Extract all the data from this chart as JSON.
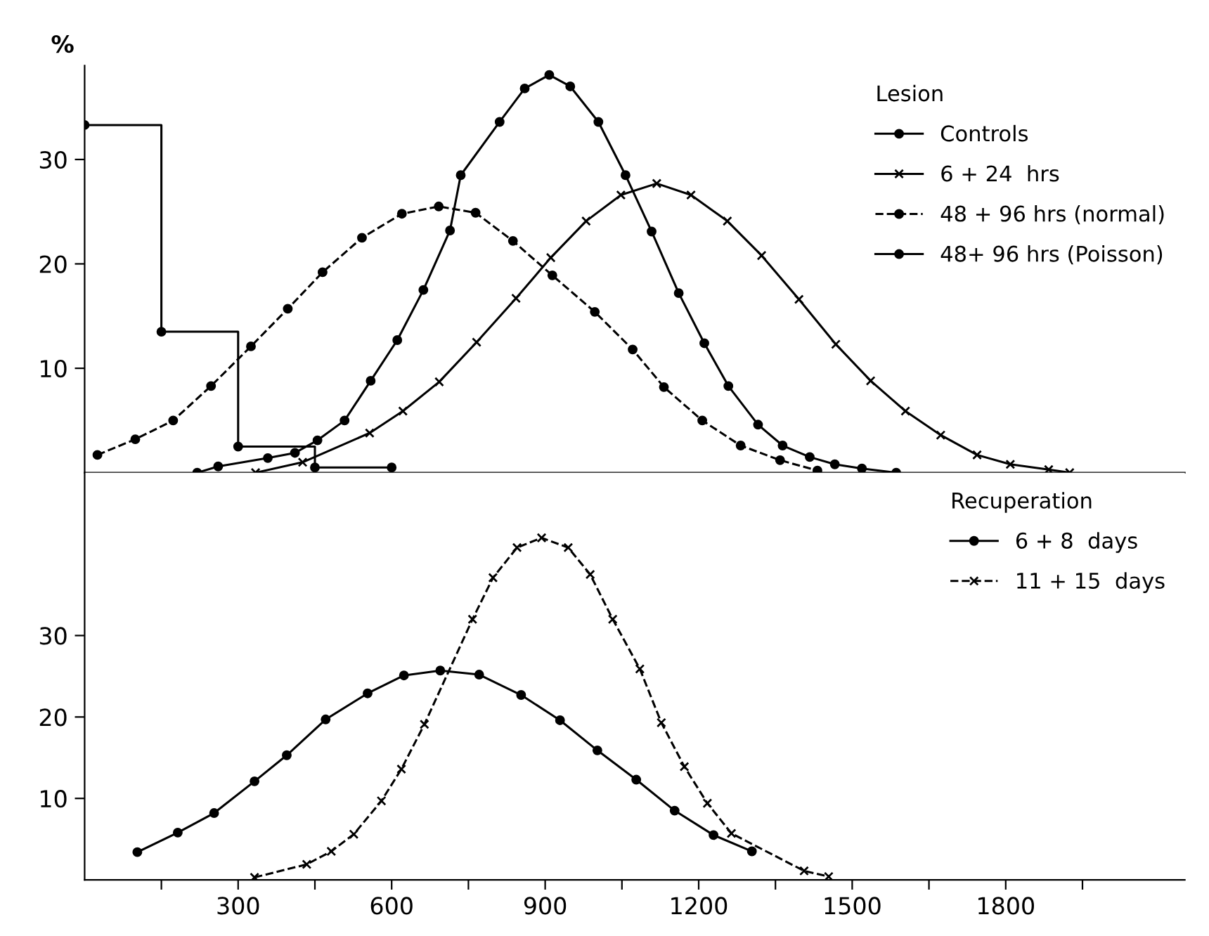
{
  "chart_data": [
    {
      "type": "line",
      "ylabel": "%",
      "legend_title": "Lesion",
      "legend": "top right",
      "tick_labels": "y",
      "grid": false,
      "xlim": [
        0,
        2150
      ],
      "ylim": [
        0,
        39
      ],
      "yticks": [
        10,
        20,
        30
      ],
      "xticks": [
        {
          "value": 150,
          "label": null
        },
        {
          "value": 300,
          "label": null
        },
        {
          "value": 450,
          "label": null
        },
        {
          "value": 600,
          "label": null
        },
        {
          "value": 750,
          "label": null
        },
        {
          "value": 900,
          "label": null
        },
        {
          "value": 1050,
          "label": null
        },
        {
          "value": 1200,
          "label": null
        },
        {
          "value": 1350,
          "label": null
        },
        {
          "value": 1500,
          "label": null
        },
        {
          "value": 1650,
          "label": null
        },
        {
          "value": 1800,
          "label": null
        },
        {
          "value": 1950,
          "label": null
        }
      ],
      "marker": "circle",
      "series": [
        {
          "name": "Controls",
          "type": "step",
          "color": "#000000",
          "line_style": "solid",
          "x": [
            0,
            150,
            300,
            450,
            600
          ],
          "values": [
            33.3,
            13.5,
            2.5,
            0.5,
            0.5
          ]
        },
        {
          "name": "6 + 24  hrs",
          "color": "#000000",
          "line_style": "solid",
          "marker": "cross",
          "x": [
            334,
            426,
            557,
            622,
            693,
            766,
            843,
            911,
            980,
            1048,
            1118,
            1185,
            1256,
            1323,
            1396,
            1468,
            1536,
            1604,
            1673,
            1744,
            1809,
            1884,
            1925
          ],
          "values": [
            0,
            1.0,
            3.8,
            5.9,
            8.7,
            12.5,
            16.7,
            20.6,
            24.1,
            26.6,
            27.7,
            26.6,
            24.1,
            20.8,
            16.6,
            12.3,
            8.8,
            5.9,
            3.6,
            1.7,
            0.8,
            0.3,
            0
          ]
        },
        {
          "name": "48 + 96 hrs (normal)",
          "color": "#000000",
          "line_style": "dashed",
          "x": [
            25,
            99,
            173,
            247,
            325,
            397,
            465,
            542,
            620,
            692,
            764,
            837,
            914,
            997,
            1071,
            1132,
            1207,
            1282,
            1359,
            1432
          ],
          "values": [
            1.7,
            3.2,
            5.0,
            8.3,
            12.1,
            15.7,
            19.2,
            22.5,
            24.8,
            25.5,
            24.9,
            22.2,
            18.9,
            15.4,
            11.8,
            8.2,
            5.0,
            2.6,
            1.2,
            0.2
          ]
        },
        {
          "name": "48+ 96 hrs (Poisson)",
          "color": "#000000",
          "line_style": "solid",
          "x": [
            220,
            261,
            358,
            411,
            455,
            508,
            559,
            611,
            662,
            714,
            735,
            811,
            860,
            908,
            949,
            1004,
            1057,
            1108,
            1161,
            1211,
            1258,
            1316,
            1364,
            1417,
            1466,
            1519,
            1586
          ],
          "values": [
            0,
            0.6,
            1.4,
            1.9,
            3.1,
            5.0,
            8.8,
            12.7,
            17.5,
            23.2,
            28.5,
            33.6,
            36.8,
            38.1,
            37.0,
            33.6,
            28.5,
            23.1,
            17.2,
            12.4,
            8.3,
            4.6,
            2.6,
            1.5,
            0.8,
            0.4,
            0
          ]
        }
      ]
    },
    {
      "type": "line",
      "legend_title": "Recuperation",
      "legend": "top right",
      "grid": false,
      "xlim": [
        0,
        2150
      ],
      "ylim": [
        0,
        50
      ],
      "yticks": [
        10,
        20,
        30
      ],
      "xticks": [
        {
          "value": 150,
          "label": null
        },
        300,
        {
          "value": 450,
          "label": null
        },
        600,
        {
          "value": 750,
          "label": null
        },
        900,
        {
          "value": 1050,
          "label": null
        },
        1200,
        {
          "value": 1350,
          "label": null
        },
        1500,
        {
          "value": 1650,
          "label": null
        },
        1800,
        {
          "value": 1950,
          "label": null
        }
      ],
      "marker": "circle",
      "series": [
        {
          "name": "6 + 8  days",
          "color": "#000000",
          "line_style": "solid",
          "x": [
            103,
            182,
            253,
            332,
            395,
            471,
            553,
            624,
            695,
            771,
            853,
            929,
            1002,
            1078,
            1153,
            1229,
            1304
          ],
          "values": [
            3.4,
            5.8,
            8.2,
            12.1,
            15.3,
            19.7,
            22.9,
            25.1,
            25.7,
            25.2,
            22.7,
            19.6,
            15.9,
            12.3,
            8.5,
            5.5,
            3.5
          ]
        },
        {
          "name": "11 + 15  days",
          "color": "#000000",
          "line_style": "dashed",
          "marker": "cross",
          "x": [
            332,
            434,
            482,
            526,
            580,
            619,
            664,
            758,
            798,
            845,
            893,
            945,
            988,
            1032,
            1085,
            1127,
            1172,
            1217,
            1264,
            1406,
            1454
          ],
          "values": [
            0.3,
            1.9,
            3.5,
            5.6,
            9.7,
            13.6,
            19.1,
            32.0,
            37.1,
            40.8,
            42.0,
            40.8,
            37.5,
            32.0,
            25.9,
            19.3,
            13.9,
            9.4,
            5.7,
            1.1,
            0.4
          ]
        }
      ]
    }
  ]
}
